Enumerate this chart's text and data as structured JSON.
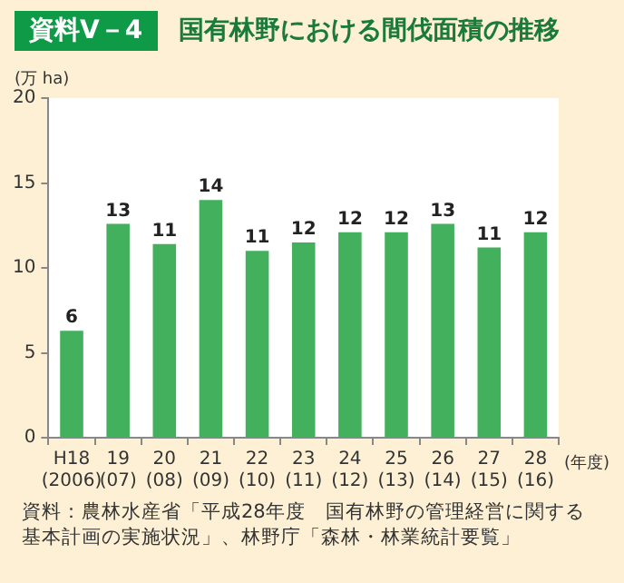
{
  "chart_data": {
    "type": "bar",
    "title": "国有林野における間伐面積の推移",
    "ylabel": "(万 ha)",
    "xlabel": "(年度)",
    "annotations": [
      "資料Ⅴ－4",
      "資料：農林水産省「平成28年度　国有林野の管理経営に関する基本計画の実施状況」、林野庁「森林・林業統計要覧」"
    ],
    "categories": [
      "H18\n(2006)",
      "19\n(07)",
      "20\n(08)",
      "21\n(09)",
      "22\n(10)",
      "23\n(11)",
      "24\n(12)",
      "25\n(13)",
      "26\n(14)",
      "27\n(15)",
      "28\n(16)"
    ],
    "values": [
      6.3,
      12.6,
      11.4,
      14.0,
      11.0,
      11.5,
      12.1,
      12.1,
      12.6,
      11.2,
      12.1
    ],
    "value_labels": [
      "6",
      "13",
      "11",
      "14",
      "11",
      "12",
      "12",
      "12",
      "13",
      "11",
      "12"
    ],
    "color": "#42b05c",
    "ylim": [
      0,
      20
    ],
    "yticks": [
      0,
      5,
      10,
      15,
      20
    ],
    "legend": false
  }
}
